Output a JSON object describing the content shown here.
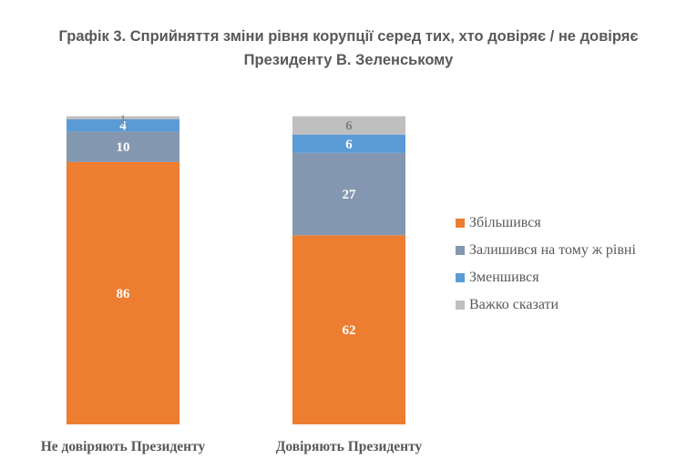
{
  "title_lines": [
    "Графік 3. Сприйняття зміни рівня корупції серед тих, хто довіряє / не довіряє",
    "Президенту В. Зеленському"
  ],
  "colors": {
    "increased": "#ED7D31",
    "same": "#8497B0",
    "decreased": "#5B9BD5",
    "hard_to_say": "#BFBFBF",
    "label_light": "#ffffff",
    "label_dark": "#7f7f7f"
  },
  "chart_data": {
    "type": "bar",
    "stacked": true,
    "percent": true,
    "title": "Графік 3. Сприйняття зміни рівня корупції серед тих, хто довіряє / не довіряє Президенту В. Зеленському",
    "categories": [
      "Не довіряють Президенту",
      "Довіряють Президенту"
    ],
    "series": [
      {
        "name": "Збільшився",
        "key": "increased",
        "values": [
          86,
          62
        ]
      },
      {
        "name": "Залишився на тому ж рівні",
        "key": "same",
        "values": [
          10,
          27
        ]
      },
      {
        "name": "Зменшився",
        "key": "decreased",
        "values": [
          4,
          6
        ]
      },
      {
        "name": "Важко сказати",
        "key": "hard_to_say",
        "values": [
          1,
          6
        ]
      }
    ],
    "ylim": [
      0,
      100
    ],
    "xlabel": "",
    "ylabel": "",
    "grid": false,
    "legend_position": "right"
  }
}
